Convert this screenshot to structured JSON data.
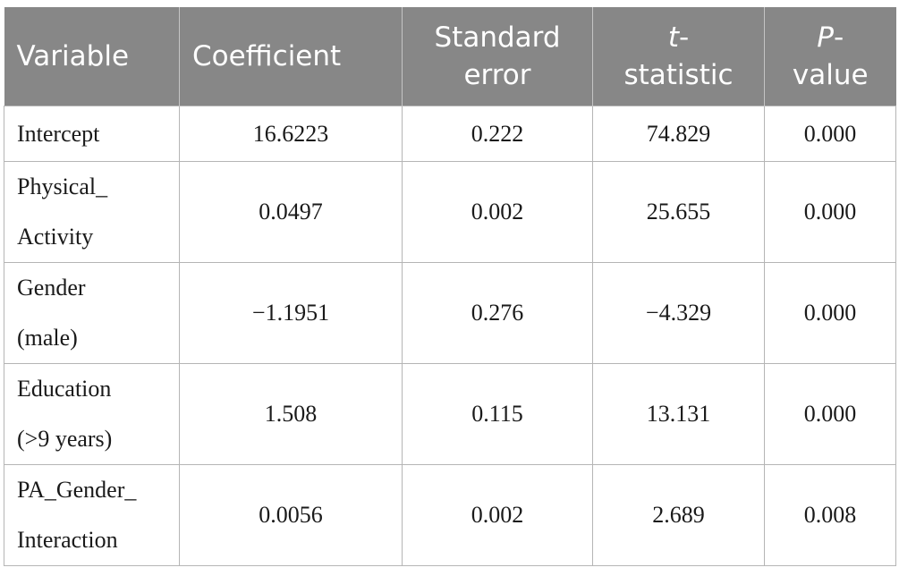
{
  "table": {
    "headers": {
      "variable": "Variable",
      "coefficient": "Coefficient",
      "std_error_l1": "Standard",
      "std_error_l2": "error",
      "t_l1_italic": "t",
      "t_l1_rest": "-",
      "t_l2": "statistic",
      "p_l1_italic": "P",
      "p_l1_rest": "-",
      "p_l2": "value"
    },
    "rows": [
      {
        "var_l1": "Intercept",
        "var_l2": "",
        "coefficient": "16.6223",
        "std_error": "0.222",
        "t_statistic": "74.829",
        "p_value": "0.000"
      },
      {
        "var_l1": "Physical_",
        "var_l2": "Activity",
        "coefficient": "0.0497",
        "std_error": "0.002",
        "t_statistic": "25.655",
        "p_value": "0.000"
      },
      {
        "var_l1": "Gender",
        "var_l2": "(male)",
        "coefficient": "−1.1951",
        "std_error": "0.276",
        "t_statistic": "−4.329",
        "p_value": "0.000"
      },
      {
        "var_l1": "Education",
        "var_l2": "(>9 years)",
        "coefficient": "1.508",
        "std_error": "0.115",
        "t_statistic": "13.131",
        "p_value": "0.000"
      },
      {
        "var_l1": "PA_Gender_",
        "var_l2": "Interaction",
        "coefficient": "0.0056",
        "std_error": "0.002",
        "t_statistic": "2.689",
        "p_value": "0.008"
      }
    ]
  }
}
